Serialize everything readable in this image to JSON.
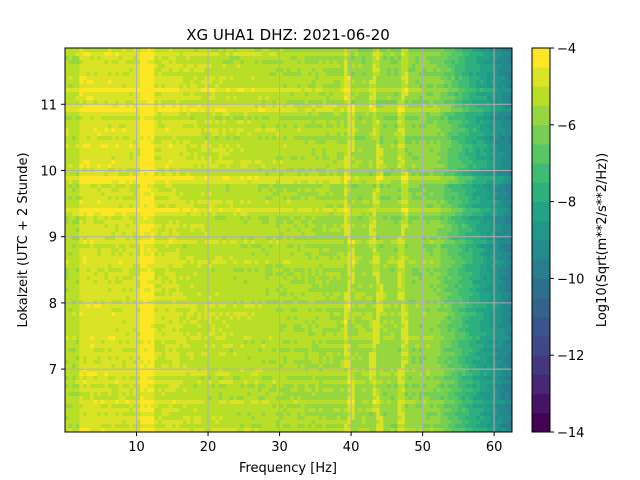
{
  "chart_data": {
    "type": "heatmap",
    "title": "XG UHA1  DHZ: 2021-06-20",
    "xlabel": "Frequency [Hz]",
    "ylabel": "Lokalzeit (UTC + 2 Stunde)",
    "xlim": [
      0,
      62.5
    ],
    "ylim": [
      11.85,
      6.05
    ],
    "xticks": [
      10,
      20,
      30,
      40,
      50,
      60
    ],
    "yticks": [
      7,
      8,
      9,
      10,
      11
    ],
    "grid": true,
    "colormap": "viridis",
    "colorbar": {
      "label": "Log10(Sqrt(m**2/s**2/Hz))",
      "vmin": -14,
      "vmax": -4,
      "ticks": [
        -4,
        -6,
        -8,
        -10,
        -12,
        -14
      ],
      "levels": 20
    },
    "features": {
      "bright_vertical_band_hz": [
        10.5,
        12.5
      ],
      "narrow_lines_hz": [
        39.6,
        43.5,
        47.2
      ],
      "rolloff_start_hz": 52,
      "horizontal_events_hour": [
        9.4,
        9.85,
        10.95,
        11.2
      ]
    }
  }
}
